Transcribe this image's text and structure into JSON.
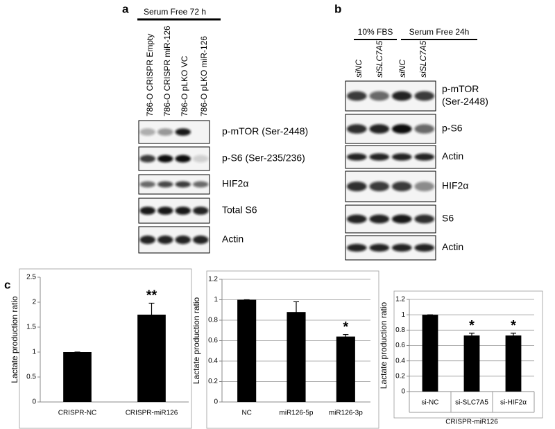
{
  "panel_a": {
    "label": "a",
    "condition": "Serum Free 72 h",
    "lanes": [
      "786-O CRISPR Empty",
      "786-O CRISPR miR-126",
      "786-O pLKO VC",
      "786-O pLKO miR-126"
    ],
    "blots": [
      [
        "p-mTOR (Ser-2448)"
      ],
      [
        "p-S6 (Ser-235/236)"
      ],
      [
        "HIF2α"
      ],
      [
        "Total S6"
      ],
      [
        "Actin"
      ]
    ]
  },
  "panel_b": {
    "label": "b",
    "groups": [
      "10% FBS",
      "Serum Free 24h"
    ],
    "lanes": [
      "siNC",
      "siSLC7A5",
      "siNC",
      "siSLC7A5"
    ],
    "blots": [
      [
        "p-mTOR",
        "(Ser-2448)"
      ],
      [
        "p-S6"
      ],
      [
        "Actin"
      ],
      [
        "HIF2α"
      ],
      [
        "S6"
      ],
      [
        "Actin"
      ]
    ]
  },
  "panel_c": {
    "label": "c"
  },
  "chart_data": [
    {
      "type": "bar",
      "ylabel": "Lactate production ratio",
      "categories": [
        "CRISPR-NC",
        "CRISPR-miR126"
      ],
      "values": [
        1,
        1.75
      ],
      "errors": [
        0,
        0.23
      ],
      "significance": [
        null,
        "**"
      ],
      "color": "#000000",
      "ylim": [
        0,
        2.5
      ],
      "yticks": [
        0,
        0.5,
        1,
        1.5,
        2,
        2.5
      ],
      "grid": false
    },
    {
      "type": "bar",
      "ylabel": "Lactate production ratio",
      "categories": [
        "NC",
        "miR126-5p",
        "miR126-3p"
      ],
      "values": [
        1,
        0.88,
        0.64
      ],
      "errors": [
        0,
        0.1,
        0.02
      ],
      "significance": [
        null,
        null,
        "*"
      ],
      "color": "#000000",
      "ylim": [
        0,
        1.2
      ],
      "yticks": [
        0,
        0.2,
        0.4,
        0.6,
        0.8,
        1,
        1.2
      ],
      "grid": true
    },
    {
      "type": "bar",
      "ylabel": "Lactate production ratio",
      "categories": [
        "si-NC",
        "si-SLC7A5",
        "si-HIF2α"
      ],
      "values": [
        1,
        0.73,
        0.73
      ],
      "errors": [
        0,
        0.03,
        0.03
      ],
      "significance": [
        null,
        "*",
        "*"
      ],
      "color": "#000000",
      "group_label": "CRISPR-miR126",
      "ylim": [
        0,
        1.2
      ],
      "yticks": [
        0,
        0.2,
        0.4,
        0.6,
        0.8,
        1,
        1.2
      ],
      "grid": true
    }
  ]
}
